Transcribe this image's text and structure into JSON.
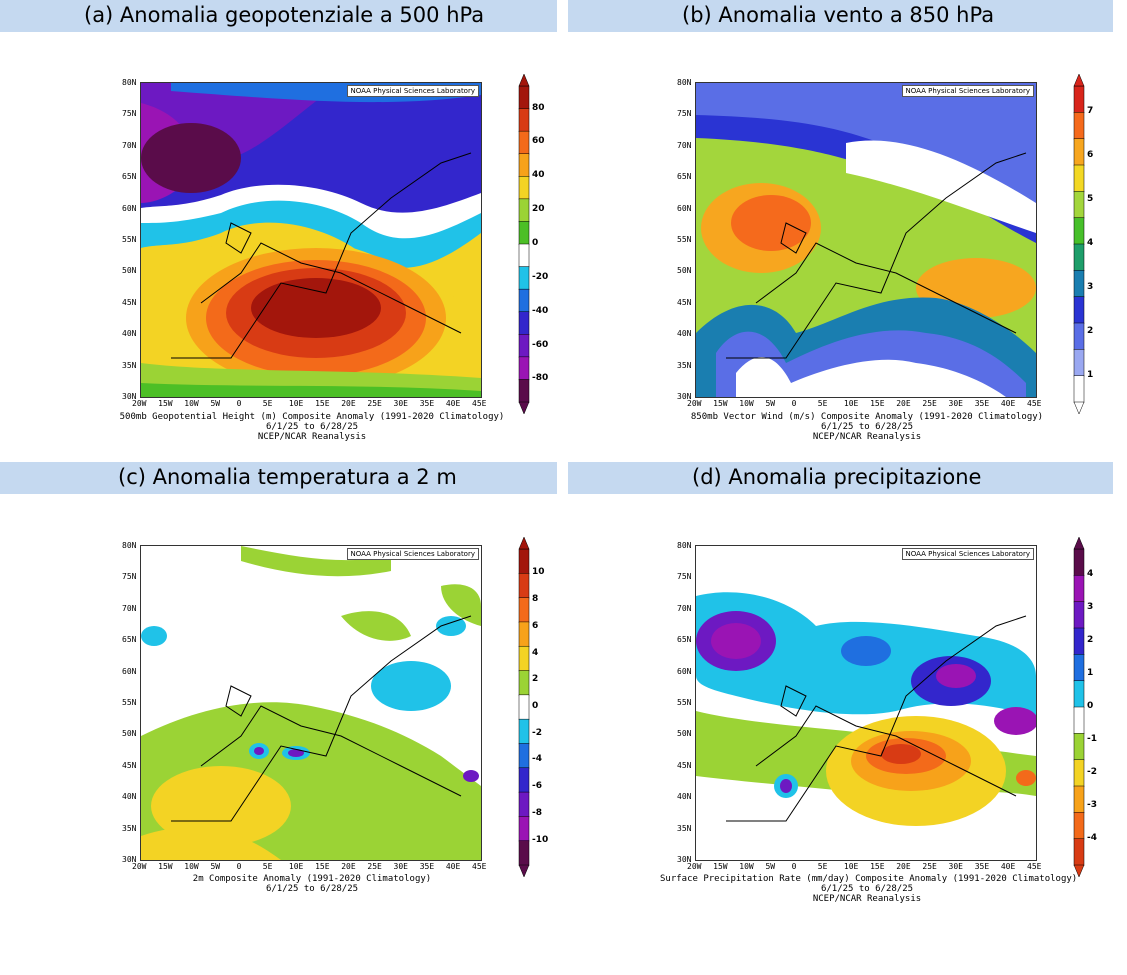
{
  "panels": [
    {
      "heading": "(a) Anomalia geopotenziale a 500 hPa",
      "caption": "500mb Geopotential Height (m) Composite Anomaly (1991-2020 Climatology)",
      "period": "6/1/25  to 6/28/25",
      "source": "NCEP/NCAR Reanalysis",
      "credit": "NOAA Physical Sciences Laboratory",
      "colorbar": {
        "labels": [
          "80",
          "60",
          "40",
          "20",
          "0",
          "-20",
          "-40",
          "-60",
          "-80"
        ],
        "colors": [
          "#a3160c",
          "#d83b14",
          "#f36a1a",
          "#f7a21a",
          "#f3d324",
          "#9bd335",
          "#4cbf26",
          "#ffffff",
          "#20c2e8",
          "#1f6fe0",
          "#3326cc",
          "#6d19c2",
          "#9a14b4",
          "#5a0c4a"
        ]
      },
      "domain_colors": {
        "ocean": "#f3d324",
        "cold": "#6d19c2",
        "hot": "#c52a12"
      }
    },
    {
      "heading": "(b) Anomalia vento a 850 hPa",
      "caption": "850mb Vector Wind (m/s) Composite Anomaly (1991-2020 Climatology)",
      "period": "6/1/25  to 6/28/25",
      "source": "NCEP/NCAR Reanalysis",
      "credit": "NOAA Physical Sciences Laboratory",
      "colorbar": {
        "labels": [
          "7",
          "6",
          "5",
          "4",
          "3",
          "2",
          "1"
        ],
        "colors": [
          "#d8251b",
          "#f56a1c",
          "#f7a61f",
          "#f3d824",
          "#a3d63c",
          "#47c02a",
          "#1e9e6a",
          "#1a7eb0",
          "#2a34d3",
          "#5a6ee6",
          "#9aa8f1",
          "#ffffff"
        ]
      }
    },
    {
      "heading": "(c) Anomalia temperatura a 2 m",
      "caption": "2m  Composite Anomaly (1991-2020 Climatology)",
      "period": "6/1/25  to 6/28/25",
      "source": "",
      "credit": "NOAA Physical Sciences Laboratory",
      "colorbar": {
        "labels": [
          "10",
          "8",
          "6",
          "4",
          "2",
          "0",
          "-2",
          "-4",
          "-6",
          "-8",
          "-10"
        ],
        "colors": [
          "#a3160c",
          "#d83b14",
          "#f36a1a",
          "#f7a21a",
          "#f3d324",
          "#9bd335",
          "#ffffff",
          "#20c2e8",
          "#1f6fe0",
          "#3326cc",
          "#6d19c2",
          "#9a14b4",
          "#5a0c4a"
        ]
      }
    },
    {
      "heading": "(d) Anomalia precipitazione",
      "caption": "Surface Precipitation Rate (mm/day) Composite Anomaly (1991-2020 Climatology)",
      "period": "6/1/25  to 6/28/25",
      "source": "NCEP/NCAR Reanalysis",
      "credit": "NOAA Physical Sciences Laboratory",
      "colorbar": {
        "labels": [
          "4",
          "3",
          "2",
          "1",
          "0",
          "-1",
          "-2",
          "-3",
          "-4"
        ],
        "colors": [
          "#5a0c4a",
          "#9a14b4",
          "#6d19c2",
          "#3326cc",
          "#1f6fe0",
          "#20c2e8",
          "#ffffff",
          "#9bd335",
          "#f3d324",
          "#f7a21a",
          "#f36a1a",
          "#d83b14"
        ]
      }
    }
  ],
  "lat_labels": [
    "80N",
    "75N",
    "70N",
    "65N",
    "60N",
    "55N",
    "50N",
    "45N",
    "40N",
    "35N",
    "30N"
  ],
  "lon_labels": [
    "20W",
    "15W",
    "10W",
    "5W",
    "0",
    "5E",
    "10E",
    "15E",
    "20E",
    "25E",
    "30E",
    "35E",
    "40E",
    "45E"
  ]
}
